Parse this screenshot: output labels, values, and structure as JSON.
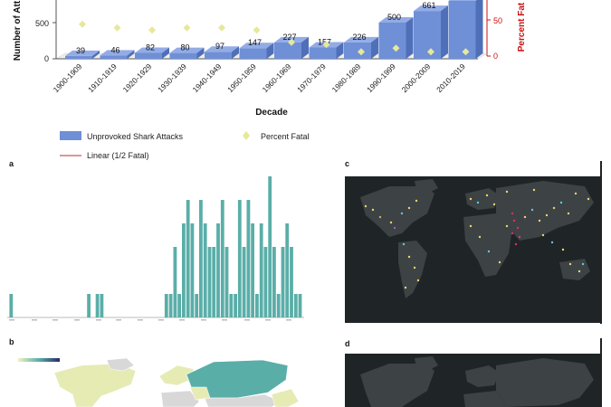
{
  "chart_data": [
    {
      "type": "bar",
      "xlabel": "Decade",
      "ylabel": "Number of Att",
      "y2label": "Percent Fat",
      "categories": [
        "1900-1909",
        "1910-1919",
        "1920-1929",
        "1930-1939",
        "1940-1949",
        "1950-1959",
        "1960-1969",
        "1970-1979",
        "1980-1989",
        "1990-1999",
        "2000-2009",
        "2010-2019"
      ],
      "series": [
        {
          "name": "Unprovoked Shark Attacks",
          "values": [
            39,
            46,
            82,
            80,
            97,
            147,
            227,
            157,
            226,
            500,
            661,
            800
          ]
        },
        {
          "name": "Percent Fatal",
          "values": [
            44,
            39,
            36,
            39,
            39,
            36,
            19,
            16,
            6,
            11,
            6,
            6
          ]
        }
      ],
      "trend_name": "Linear (1/2 Fatal)",
      "y_ticks": [
        "0",
        "500"
      ],
      "y2_ticks": [
        "0",
        "50"
      ],
      "ylim": [
        0,
        800
      ],
      "y2lim": [
        0,
        80
      ],
      "bar_labels": [
        "39",
        "46",
        "82",
        "80",
        "97",
        "147",
        "227",
        "157",
        "226",
        "500",
        "661",
        ""
      ],
      "colors": {
        "bar": "#6f8fd6",
        "diamond": "#e6e89a",
        "trend": "#b03030",
        "y2axis": "#cc1111"
      }
    },
    {
      "type": "bar",
      "panel_letter": "a",
      "values": [
        1,
        0,
        0,
        0,
        0,
        0,
        0,
        0,
        0,
        0,
        0,
        0,
        0,
        0,
        0,
        0,
        0,
        0,
        1,
        0,
        1,
        1,
        0,
        0,
        0,
        0,
        0,
        0,
        0,
        0,
        0,
        0,
        0,
        0,
        0,
        0,
        1,
        1,
        3,
        1,
        4,
        5,
        4,
        1,
        5,
        4,
        3,
        3,
        4,
        5,
        3,
        1,
        1,
        5,
        3,
        5,
        4,
        1,
        4,
        3,
        6,
        3,
        1,
        3,
        4,
        3,
        1,
        1
      ],
      "ylim": [
        0,
        6
      ],
      "color": "#5aaea8"
    }
  ],
  "panels": {
    "a": "a",
    "b": "b",
    "c": "c",
    "d": "d"
  }
}
